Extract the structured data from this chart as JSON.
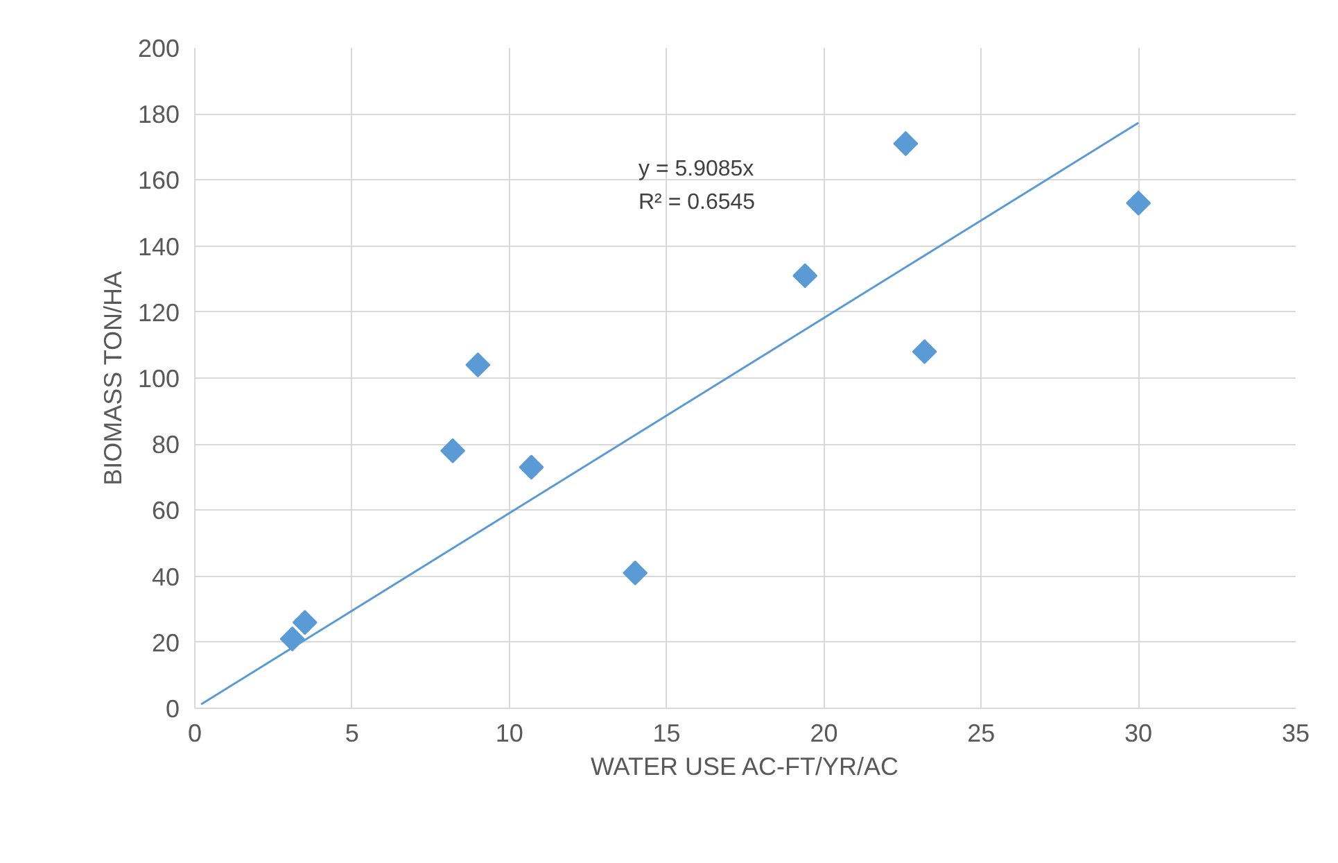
{
  "chart_data": {
    "type": "scatter",
    "xlabel": "WATER USE AC-FT/YR/AC",
    "ylabel": "BIOMASS TON/HA",
    "series": [
      {
        "color": "#5b9bd5",
        "marker": "diamond",
        "x": [
          3.1,
          3.5,
          8.2,
          9.0,
          10.7,
          14.0,
          19.4,
          22.6,
          23.2,
          30.0
        ],
        "values": [
          21,
          26,
          78,
          104,
          73,
          41,
          131,
          171,
          108,
          153
        ]
      },
      {
        "type": "line",
        "color": "#5b9bd5",
        "x": [
          0.2,
          30.0
        ],
        "values": [
          1.2,
          177.3
        ],
        "marker": "none"
      }
    ],
    "annotations": [
      "y = 5.9085x",
      "R² = 0.6545"
    ],
    "xlim": [
      0,
      35
    ],
    "xticks": [
      0,
      5,
      10,
      15,
      20,
      25,
      30,
      35
    ],
    "ylim": [
      0,
      200
    ],
    "yticks": [
      0,
      20,
      40,
      60,
      80,
      100,
      120,
      140,
      160,
      180,
      200
    ],
    "grid": true,
    "line_style": "solid"
  }
}
